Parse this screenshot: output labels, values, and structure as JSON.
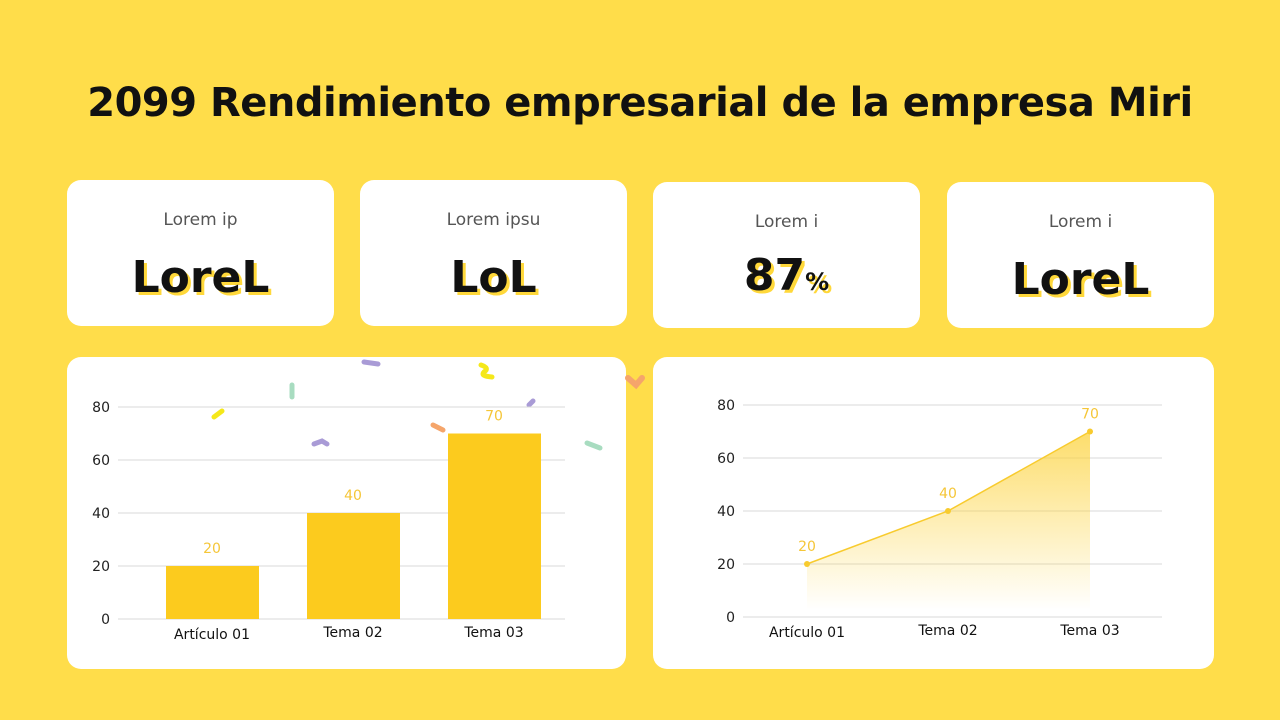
{
  "title": "2099 Rendimiento empresarial de la empresa Miri",
  "kpis": [
    {
      "label": "Lorem ip",
      "value": "LoreL",
      "unit": ""
    },
    {
      "label": "Lorem ipsu",
      "value": "LoL",
      "unit": ""
    },
    {
      "label": "Lorem i",
      "value": "87",
      "unit": "%"
    },
    {
      "label": "Lorem i",
      "value": "LoreL",
      "unit": ""
    }
  ],
  "colors": {
    "background": "#FFDD4A",
    "bar": "#FCCB1E",
    "label": "#F5C638",
    "line": "#F8CB2E"
  },
  "chart_data": [
    {
      "type": "bar",
      "categories": [
        "Artículo 01",
        "Tema 02",
        "Tema 03"
      ],
      "values": [
        20,
        40,
        70
      ],
      "yticks": [
        0,
        20,
        40,
        60,
        80
      ],
      "ylim": [
        0,
        80
      ],
      "grid": true,
      "data_labels": true
    },
    {
      "type": "area",
      "categories": [
        "Artículo 01",
        "Tema 02",
        "Tema 03"
      ],
      "values": [
        20,
        40,
        70
      ],
      "yticks": [
        0,
        20,
        40,
        60,
        80
      ],
      "ylim": [
        0,
        80
      ],
      "grid": true,
      "data_labels": true
    }
  ]
}
